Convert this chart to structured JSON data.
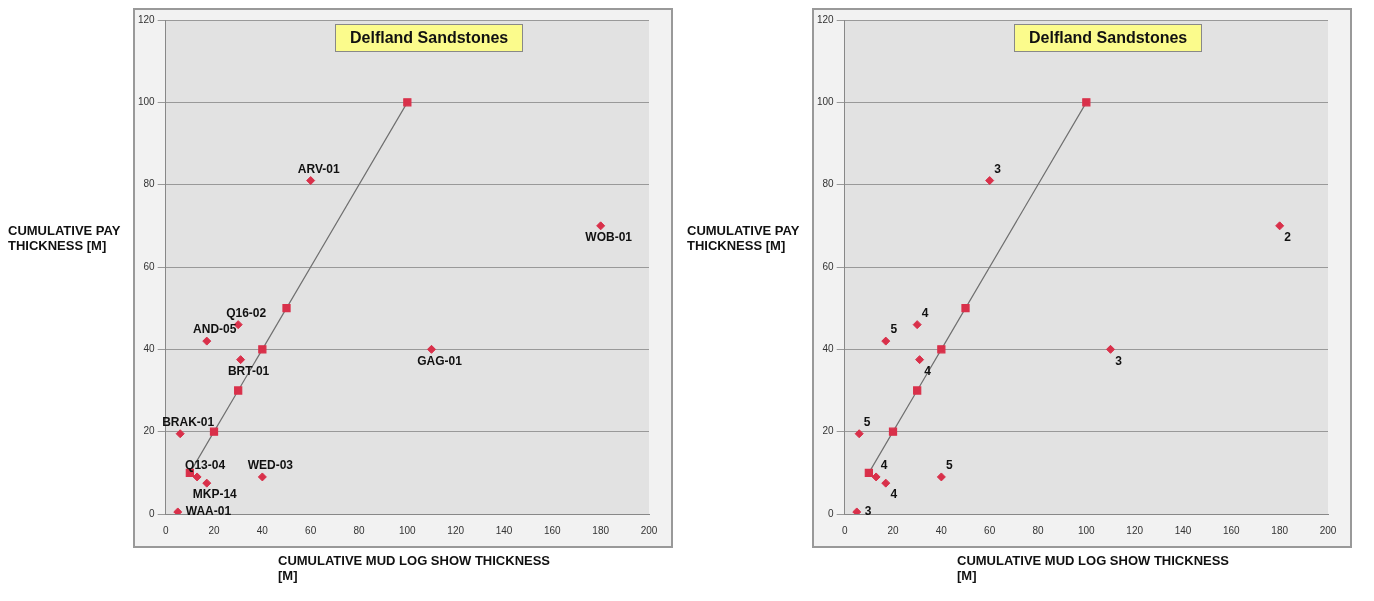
{
  "chart_data": [
    {
      "type": "scatter",
      "title": "Delfland Sandstones",
      "xlabel": "CUMULATIVE MUD LOG SHOW THICKNESS [M]",
      "ylabel": "CUMULATIVE PAY THICKNESS [M]",
      "xlim": [
        0,
        200
      ],
      "xticks": [
        0,
        20,
        40,
        60,
        80,
        100,
        120,
        140,
        160,
        180,
        200
      ],
      "ylim": [
        0,
        120
      ],
      "yticks": [
        0,
        20,
        40,
        60,
        80,
        100,
        120
      ],
      "grid": "y",
      "legend": false,
      "series": [
        {
          "type": "line",
          "color": "#707070",
          "marker": "square",
          "x": [
            10,
            20,
            30,
            40,
            50,
            100
          ],
          "values": [
            10,
            20,
            30,
            40,
            50,
            100
          ]
        },
        {
          "type": "scatter",
          "color": "#d9304a",
          "marker": "diamond",
          "x": [
            60,
            180,
            30,
            110,
            17,
            17,
            31,
            40,
            6,
            5,
            13
          ],
          "values": [
            81,
            70,
            46,
            40,
            42,
            7.5,
            37.5,
            9,
            19.5,
            0.5,
            9
          ]
        }
      ],
      "annotations": [
        {
          "text": "ARV-01",
          "x": 60,
          "y": 81
        },
        {
          "text": "WOB-01",
          "x": 180,
          "y": 70
        },
        {
          "text": "Q16-02",
          "x": 30,
          "y": 46
        },
        {
          "text": "GAG-01",
          "x": 110,
          "y": 40
        },
        {
          "text": "AND-05",
          "x": 17,
          "y": 42
        },
        {
          "text": "MKP-14",
          "x": 17,
          "y": 7.5
        },
        {
          "text": "WED-03",
          "x": 40,
          "y": 9
        },
        {
          "text": "BRT-01",
          "x": 31,
          "y": 37.5
        },
        {
          "text": "BRAK-01",
          "x": 6,
          "y": 19.5
        },
        {
          "text": "WAA-01",
          "x": 5,
          "y": 0.5
        },
        {
          "text": "Q13-04",
          "x": 13,
          "y": 9
        }
      ]
    },
    {
      "type": "scatter",
      "title": "Delfland Sandstones",
      "xlabel": "CUMULATIVE MUD LOG SHOW THICKNESS [M]",
      "ylabel": "CUMULATIVE PAY THICKNESS [M]",
      "xlim": [
        0,
        200
      ],
      "xticks": [
        0,
        20,
        40,
        60,
        80,
        100,
        120,
        140,
        160,
        180,
        200
      ],
      "ylim": [
        0,
        120
      ],
      "yticks": [
        0,
        20,
        40,
        60,
        80,
        100,
        120
      ],
      "grid": "y",
      "legend": false,
      "series": [
        {
          "type": "line",
          "color": "#707070",
          "marker": "square",
          "x": [
            10,
            20,
            30,
            40,
            50,
            100
          ],
          "values": [
            10,
            20,
            30,
            40,
            50,
            100
          ]
        },
        {
          "type": "scatter",
          "color": "#d9304a",
          "marker": "diamond",
          "x": [
            60,
            180,
            30,
            110,
            17,
            17,
            31,
            40,
            6,
            5,
            13
          ],
          "values": [
            81,
            70,
            46,
            40,
            42,
            7.5,
            37.5,
            9,
            19.5,
            0.5,
            9
          ]
        }
      ],
      "annotations": [
        {
          "text": "3",
          "x": 60,
          "y": 81
        },
        {
          "text": "2",
          "x": 180,
          "y": 70
        },
        {
          "text": "4",
          "x": 30,
          "y": 46
        },
        {
          "text": "3",
          "x": 110,
          "y": 40
        },
        {
          "text": "5",
          "x": 17,
          "y": 42
        },
        {
          "text": "4",
          "x": 17,
          "y": 7.5
        },
        {
          "text": "5",
          "x": 40,
          "y": 9
        },
        {
          "text": "4",
          "x": 31,
          "y": 37.5
        },
        {
          "text": "5",
          "x": 6,
          "y": 19.5
        },
        {
          "text": "3",
          "x": 5,
          "y": 0.5
        },
        {
          "text": "4",
          "x": 13,
          "y": 9
        }
      ]
    }
  ]
}
